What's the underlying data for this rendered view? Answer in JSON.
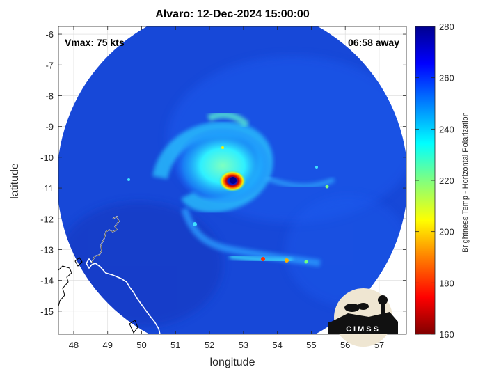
{
  "title": "Alvaro: 12-Dec-2024 15:00:00",
  "vmax_label": "Vmax: 75 kts",
  "time_away_label": "06:58 away",
  "x_axis": {
    "label": "longitude",
    "ticks": [
      48,
      49,
      50,
      51,
      52,
      53,
      54,
      55,
      56,
      57
    ],
    "range": [
      47.55,
      57.8
    ]
  },
  "y_axis": {
    "label": "latitude",
    "ticks": [
      -6,
      -7,
      -8,
      -9,
      -10,
      -11,
      -12,
      -13,
      -14,
      -15
    ],
    "range": [
      -15.75,
      -5.75
    ]
  },
  "colorbar": {
    "label": "Brightness Temp - Horizontal Polarization",
    "ticks": [
      280,
      260,
      240,
      220,
      200,
      180,
      160
    ],
    "range": [
      160,
      280
    ],
    "colormap": "jet"
  },
  "storm": {
    "name": "Alvaro",
    "center_lon": 52.7,
    "center_lat": -10.8
  },
  "logo_text": "CIMSS",
  "colors": {
    "background_swath": "#1a4fe0",
    "land_outline": "#ffffff",
    "grid": "#d9d9d9"
  }
}
